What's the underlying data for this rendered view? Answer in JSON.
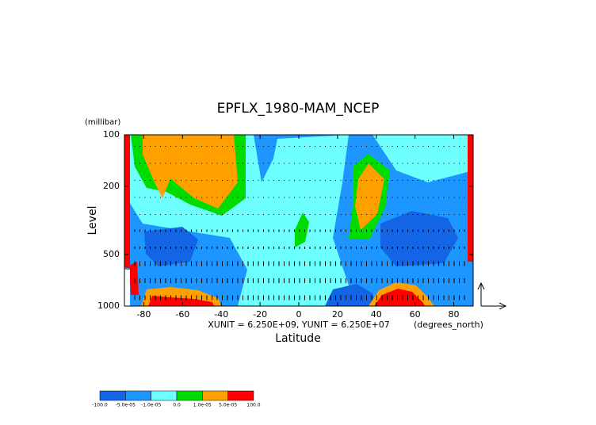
{
  "chart_data": {
    "type": "contourf",
    "title": "EPFLX_1980-MAM_NCEP",
    "y_unit_label": "(millibar)",
    "ylabel": "Level",
    "xlabel": "Latitude",
    "x_unit_label": "(degrees_north)",
    "annotation": "XUNIT = 6.250E+09, YUNIT = 6.250E+07",
    "xlim": [
      -90,
      90
    ],
    "ylim": [
      1000,
      100
    ],
    "yscale": "log",
    "xticks": [
      -80,
      -60,
      -40,
      -20,
      0,
      20,
      40,
      60,
      80
    ],
    "yticks": [
      100,
      200,
      500,
      1000
    ],
    "levels": [
      {
        "value": -100,
        "label": "-100.0"
      },
      {
        "value": -5e-05,
        "label": "-5.0e-05"
      },
      {
        "value": -1e-05,
        "label": "-1.0e-05"
      },
      {
        "value": 0,
        "label": "0.0"
      },
      {
        "value": 1e-05,
        "label": "1.0e-05"
      },
      {
        "value": 5e-05,
        "label": "5.0e-05"
      },
      {
        "value": 100,
        "label": "100.0"
      }
    ],
    "colors": [
      "#1464e6",
      "#1e96ff",
      "#6effff",
      "#00dc00",
      "#ffa000",
      "#ff0000"
    ]
  }
}
